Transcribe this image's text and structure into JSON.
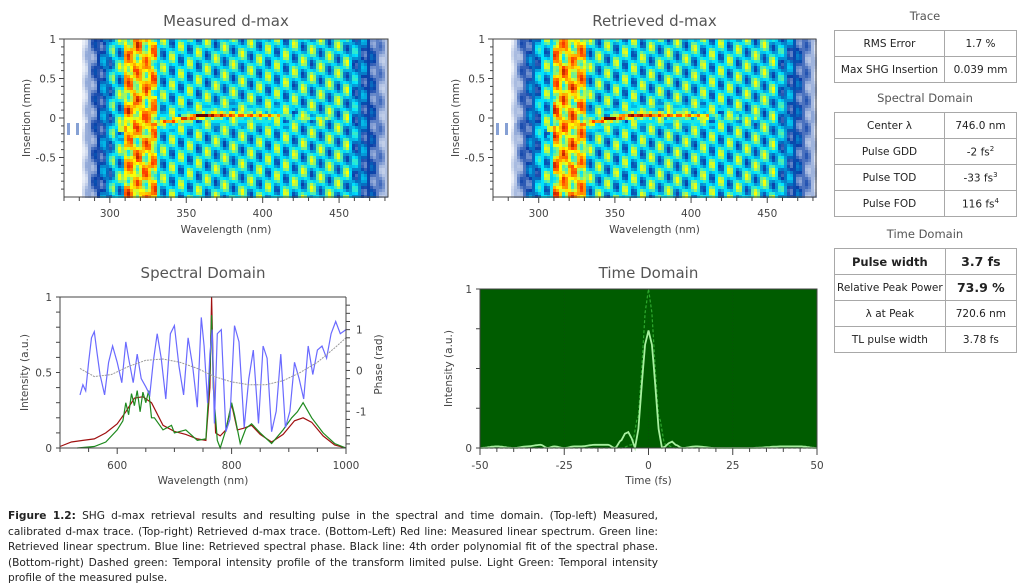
{
  "panels": {
    "measured": {
      "title": "Measured d-max"
    },
    "retrieved": {
      "title": "Retrieved d-max"
    },
    "spectral": {
      "title": "Spectral Domain"
    },
    "time": {
      "title": "Time Domain"
    }
  },
  "tables": {
    "trace": {
      "heading": "Trace",
      "rows": [
        {
          "label": "RMS Error",
          "value": "1.7 %"
        },
        {
          "label": "Max SHG Insertion",
          "value": "0.039 mm"
        }
      ]
    },
    "spectral": {
      "heading": "Spectral Domain",
      "rows": [
        {
          "label": "Center λ",
          "value": "746.0 nm"
        },
        {
          "label": "Pulse GDD",
          "value": "-2 fs",
          "sup": "2"
        },
        {
          "label": "Pulse TOD",
          "value": "-33 fs",
          "sup": "3"
        },
        {
          "label": "Pulse FOD",
          "value": "116 fs",
          "sup": "4"
        }
      ]
    },
    "time": {
      "heading": "Time Domain",
      "rows": [
        {
          "label": "Pulse width",
          "value": "3.7 fs"
        },
        {
          "label": "Relative Peak Power",
          "value": "73.9 %"
        },
        {
          "label": "λ at Peak",
          "value": "720.6 nm"
        },
        {
          "label": "TL pulse width",
          "value": "3.78 fs"
        }
      ]
    }
  },
  "caption": {
    "label": "Figure 1.2:",
    "text": "SHG d-max retrieval results and resulting pulse in the spectral and time domain. (Top-left) Measured, calibrated d-max trace. (Top-right) Retrieved d-max trace. (Bottom-Left) Red line: Measured linear spectrum. Green line: Retrieved linear spectrum. Blue line: Retrieved spectral phase. Black line: 4th order polynomial fit of the spectral phase. (Bottom-right) Dashed green: Temporal intensity profile of the transform limited pulse. Light Green: Temporal intensity profile of the measured pulse."
  },
  "chart_data": [
    {
      "id": "measured",
      "type": "heatmap",
      "title": "Measured d-max",
      "xlabel": "Wavelength (nm)",
      "ylabel": "Insertion (mm)",
      "xlim": [
        270,
        482
      ],
      "ylim": [
        -1,
        1
      ],
      "xticks": [
        300,
        350,
        400,
        450
      ],
      "yticks": [
        1,
        0.5,
        0,
        -0.5
      ],
      "ytick_labels": [
        "1",
        "0.5",
        "0",
        "-0.5"
      ],
      "colormap": [
        "#ffffff",
        "#0a3fa8",
        "#00e5ff",
        "#ffff00",
        "#ff4000",
        "#6b0000"
      ],
      "ridge": [
        {
          "x": 312,
          "y": -0.12
        },
        {
          "x": 320,
          "y": -0.09
        },
        {
          "x": 330,
          "y": -0.05
        },
        {
          "x": 345,
          "y": 0.0
        },
        {
          "x": 360,
          "y": 0.05
        },
        {
          "x": 380,
          "y": 0.06
        },
        {
          "x": 400,
          "y": 0.05
        },
        {
          "x": 420,
          "y": 0.03
        },
        {
          "x": 440,
          "y": 0.02
        }
      ],
      "peak": {
        "x": 360,
        "y": 0.05
      }
    },
    {
      "id": "retrieved",
      "type": "heatmap",
      "title": "Retrieved d-max",
      "xlabel": "Wavelength (nm)",
      "ylabel": "Insertion (mm)",
      "xlim": [
        270,
        482
      ],
      "ylim": [
        -1,
        1
      ],
      "xticks": [
        300,
        350,
        400,
        450
      ],
      "yticks": [
        1,
        0.5,
        0,
        -0.5
      ],
      "ytick_labels": [
        "1",
        "0.5",
        "0",
        "-0.5"
      ],
      "colormap": [
        "#ffffff",
        "#0a3fa8",
        "#00e5ff",
        "#ffff00",
        "#ff4000",
        "#6b0000"
      ],
      "ridge": [
        {
          "x": 312,
          "y": -0.12
        },
        {
          "x": 320,
          "y": -0.09
        },
        {
          "x": 330,
          "y": -0.05
        },
        {
          "x": 345,
          "y": 0.0
        },
        {
          "x": 360,
          "y": 0.05
        },
        {
          "x": 380,
          "y": 0.06
        },
        {
          "x": 400,
          "y": 0.05
        },
        {
          "x": 420,
          "y": 0.03
        },
        {
          "x": 440,
          "y": 0.02
        }
      ],
      "peak": {
        "x": 345,
        "y": 0.02
      }
    },
    {
      "id": "spectral",
      "type": "line",
      "title": "Spectral Domain",
      "xlabel": "Wavelength (nm)",
      "ylabel": "Intensity (a.u.)",
      "y2label": "Phase (rad)",
      "xlim": [
        500,
        1000
      ],
      "ylim": [
        0,
        1
      ],
      "y2lim": [
        -1.9,
        1.8
      ],
      "xticks": [
        600,
        800,
        1000
      ],
      "yticks": [
        0,
        0.5,
        1
      ],
      "y2ticks": [
        -1,
        0,
        1
      ],
      "series": [
        {
          "name": "Measured linear spectrum",
          "color": "#a01010",
          "axis": "left",
          "x": [
            500,
            520,
            540,
            560,
            580,
            600,
            615,
            630,
            645,
            660,
            680,
            700,
            720,
            740,
            755,
            762,
            765,
            768,
            772,
            780,
            790,
            800,
            810,
            820,
            835,
            850,
            870,
            890,
            910,
            925,
            940,
            960,
            980,
            1000
          ],
          "y": [
            0.01,
            0.04,
            0.05,
            0.06,
            0.1,
            0.16,
            0.24,
            0.33,
            0.34,
            0.3,
            0.15,
            0.11,
            0.09,
            0.06,
            0.05,
            0.4,
            1.0,
            0.5,
            0.1,
            0.08,
            0.12,
            0.29,
            0.12,
            0.13,
            0.15,
            0.09,
            0.04,
            0.09,
            0.18,
            0.2,
            0.17,
            0.08,
            0.02,
            0.0
          ]
        },
        {
          "name": "Retrieved linear spectrum",
          "color": "#1e8a1e",
          "axis": "left",
          "x": [
            530,
            560,
            580,
            600,
            610,
            615,
            620,
            625,
            630,
            635,
            640,
            645,
            650,
            655,
            660,
            665,
            680,
            695,
            700,
            720,
            740,
            755,
            762,
            765,
            768,
            775,
            780,
            790,
            800,
            805,
            815,
            825,
            835,
            850,
            870,
            890,
            905,
            915,
            925,
            940,
            960,
            980,
            1000
          ],
          "y": [
            0.0,
            0.01,
            0.04,
            0.12,
            0.18,
            0.3,
            0.22,
            0.36,
            0.28,
            0.38,
            0.24,
            0.37,
            0.3,
            0.38,
            0.2,
            0.2,
            0.12,
            0.15,
            0.1,
            0.12,
            0.05,
            0.06,
            0.5,
            0.88,
            0.4,
            0.05,
            0.0,
            0.12,
            0.3,
            0.22,
            0.03,
            0.13,
            0.16,
            0.1,
            0.03,
            0.12,
            0.2,
            0.24,
            0.3,
            0.2,
            0.1,
            0.03,
            0.0
          ]
        },
        {
          "name": "Retrieved spectral phase",
          "color": "#6a6aff",
          "axis": "right",
          "x": [
            535,
            540,
            545,
            550,
            555,
            560,
            565,
            570,
            578,
            585,
            592,
            600,
            608,
            615,
            620,
            628,
            635,
            642,
            650,
            657,
            663,
            670,
            677,
            685,
            693,
            700,
            708,
            716,
            724,
            732,
            740,
            747,
            752,
            758,
            762,
            766,
            770,
            775,
            782,
            790,
            797,
            805,
            813,
            822,
            830,
            838,
            847,
            855,
            862,
            870,
            878,
            886,
            894,
            902,
            910,
            918,
            926,
            934,
            942,
            950,
            958,
            966,
            974,
            982,
            990,
            1000
          ],
          "y": [
            -0.6,
            -0.35,
            -0.5,
            0.2,
            0.8,
            0.95,
            0.4,
            -0.1,
            -0.6,
            0.2,
            0.6,
            0.2,
            -0.3,
            0.7,
            0.3,
            -0.3,
            0.4,
            -0.2,
            -0.4,
            -0.6,
            0.2,
            0.9,
            0.3,
            -0.7,
            0.9,
            1.1,
            0.1,
            -0.6,
            0.8,
            0.1,
            -0.9,
            1.3,
            0.6,
            -0.8,
            0.4,
            1.0,
            -1.3,
            0.9,
            1.0,
            -1.5,
            -1.2,
            1.1,
            0.7,
            -1.4,
            -0.2,
            0.5,
            -1.3,
            0.6,
            0.3,
            -1.5,
            -1.0,
            0.4,
            -1.4,
            -1.0,
            0.2,
            -0.2,
            -0.7,
            0.6,
            -0.1,
            0.5,
            0.6,
            0.3,
            0.9,
            1.2,
            0.9,
            1.0
          ]
        },
        {
          "name": "4th order polynomial fit",
          "color": "#999999",
          "axis": "right",
          "x": [
            535,
            560,
            590,
            620,
            650,
            680,
            710,
            740,
            770,
            800,
            830,
            860,
            890,
            920,
            950,
            980,
            1000
          ],
          "y": [
            0.05,
            -0.15,
            -0.1,
            0.1,
            0.25,
            0.28,
            0.2,
            0.05,
            -0.15,
            -0.28,
            -0.35,
            -0.35,
            -0.25,
            -0.05,
            0.2,
            0.55,
            0.8
          ]
        }
      ]
    },
    {
      "id": "time",
      "type": "line",
      "title": "Time Domain",
      "xlabel": "Time (fs)",
      "ylabel": "Intensity (a.u.)",
      "xlim": [
        -50,
        50
      ],
      "ylim": [
        0,
        1
      ],
      "xticks": [
        -50,
        -25,
        0,
        25,
        50
      ],
      "yticks": [
        0,
        1
      ],
      "background": "#005c00",
      "series": [
        {
          "name": "Transform limited pulse",
          "style": "dashed",
          "color": "#2ea82e",
          "x": [
            -50,
            -8,
            -5,
            -3,
            -2,
            -1,
            0,
            1,
            2,
            3,
            5,
            8,
            50
          ],
          "y": [
            0,
            0,
            0.02,
            0.2,
            0.5,
            0.85,
            1.0,
            0.85,
            0.5,
            0.2,
            0.02,
            0,
            0
          ]
        },
        {
          "name": "Measured pulse",
          "style": "solid",
          "color": "#a8f0a0",
          "x": [
            -50,
            -45,
            -40,
            -36,
            -32,
            -30,
            -28,
            -25,
            -22,
            -20,
            -16,
            -12,
            -10,
            -8,
            -7,
            -6,
            -5,
            -4,
            -3,
            -2,
            -1,
            0,
            1,
            2,
            3,
            4,
            5,
            6,
            7,
            8,
            10,
            14,
            20,
            30,
            40,
            45,
            50
          ],
          "y": [
            0.0,
            0.01,
            0.0,
            0.01,
            0.02,
            0.0,
            0.01,
            0.0,
            0.01,
            0.01,
            0.02,
            0.02,
            0.0,
            0.05,
            0.09,
            0.1,
            0.06,
            0.0,
            0.12,
            0.4,
            0.65,
            0.739,
            0.65,
            0.4,
            0.12,
            0.0,
            0.01,
            0.03,
            0.04,
            0.02,
            0.0,
            0.01,
            0.0,
            0.0,
            0.01,
            0.01,
            0.0
          ]
        }
      ]
    }
  ]
}
